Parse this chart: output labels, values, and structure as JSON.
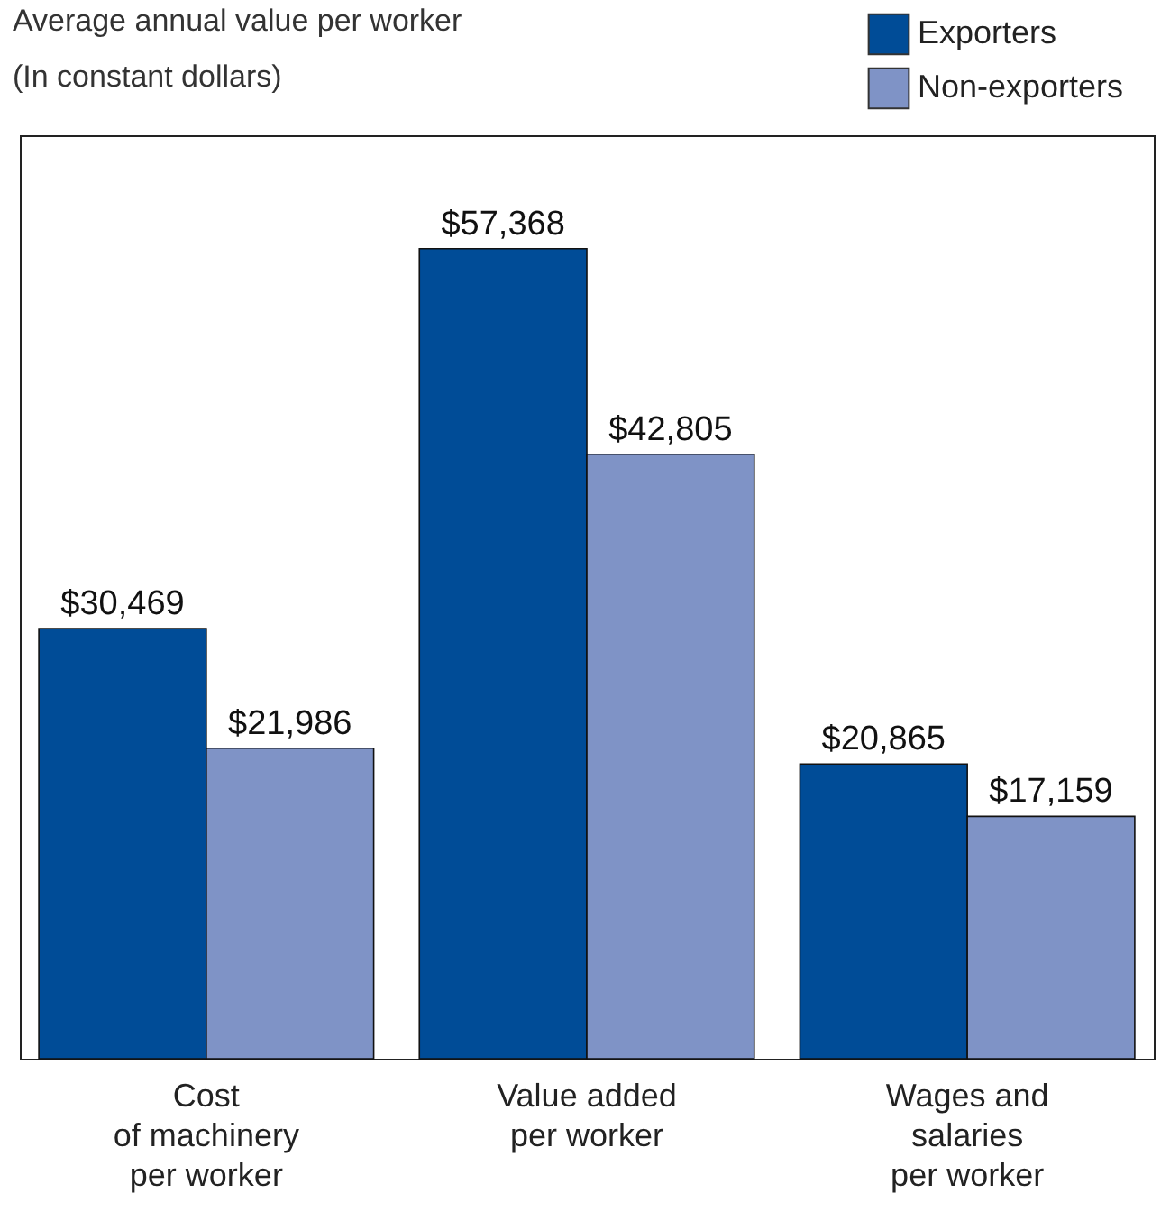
{
  "chart_data": {
    "type": "bar",
    "title": "Average annual value per worker",
    "subtitle": "(In constant dollars)",
    "categories": [
      "Cost\nof machinery\nper worker",
      "Value added\nper worker",
      "Wages and\nsalaries\nper worker"
    ],
    "series": [
      {
        "name": "Exporters",
        "color": "#004c97",
        "values": [
          30469,
          57368,
          20865
        ],
        "value_labels": [
          "$30,469",
          "$57,368",
          "$20,865"
        ]
      },
      {
        "name": "Non-exporters",
        "color": "#7f93c6",
        "values": [
          21986,
          42805,
          17159
        ],
        "value_labels": [
          "$21,986",
          "$42,805",
          "$17,159"
        ]
      }
    ],
    "legend": "top right",
    "grid": false
  }
}
